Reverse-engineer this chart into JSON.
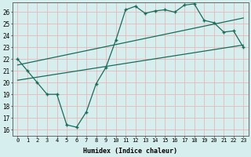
{
  "xlabel": "Humidex (Indice chaleur)",
  "bg_color": "#d6efee",
  "grid_color": "#b8d8d5",
  "line_color": "#1a6b5a",
  "xlim": [
    -0.5,
    23.5
  ],
  "ylim": [
    15.5,
    26.8
  ],
  "yticks": [
    16,
    17,
    18,
    19,
    20,
    21,
    22,
    23,
    24,
    25,
    26
  ],
  "xticks": [
    0,
    1,
    2,
    3,
    4,
    5,
    6,
    7,
    8,
    9,
    10,
    11,
    12,
    13,
    14,
    15,
    16,
    17,
    18,
    19,
    20,
    21,
    22,
    23
  ],
  "line1_x": [
    0,
    1,
    2,
    3,
    4,
    5,
    6,
    7,
    8,
    9,
    10,
    11,
    12,
    13,
    14,
    15,
    16,
    17,
    18,
    19,
    20,
    21,
    22,
    23
  ],
  "line1_y": [
    22.0,
    21.0,
    20.0,
    19.0,
    19.0,
    16.4,
    16.2,
    17.5,
    19.9,
    21.3,
    23.6,
    26.2,
    26.5,
    25.9,
    26.1,
    26.2,
    26.0,
    26.6,
    26.7,
    25.3,
    25.1,
    24.3,
    24.4,
    23.0
  ],
  "line2_x": [
    0,
    23
  ],
  "line2_y": [
    21.5,
    25.5
  ],
  "line3_x": [
    0,
    23
  ],
  "line3_y": [
    20.2,
    23.2
  ]
}
